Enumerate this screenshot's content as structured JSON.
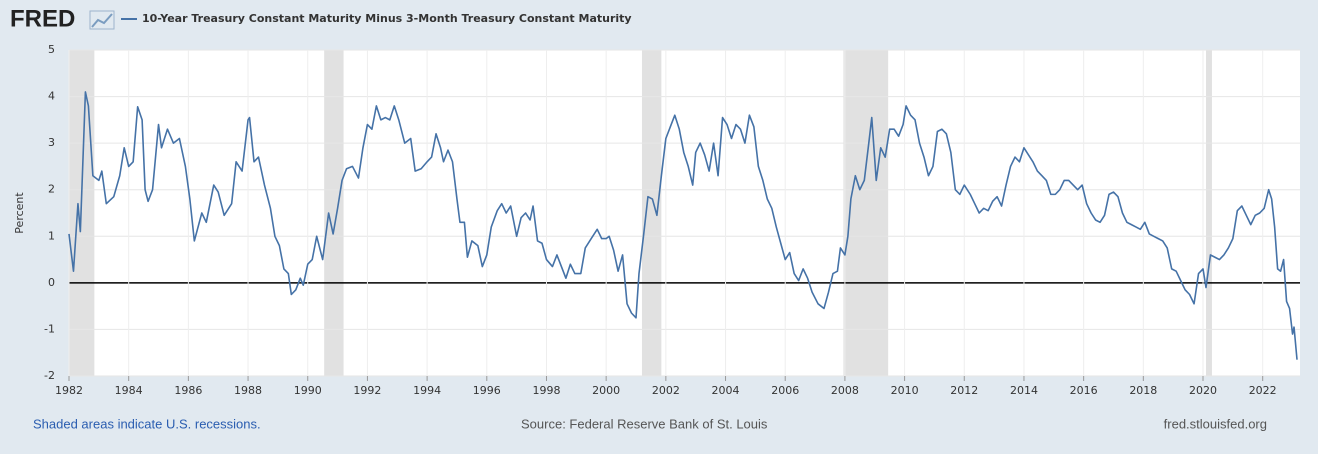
{
  "header": {
    "logo": "FRED"
  },
  "chart_data": {
    "type": "line",
    "y_label": "Percent",
    "x": [
      1982.0,
      1982.15,
      1982.3,
      1982.38,
      1982.55,
      1982.65,
      1982.8,
      1983.0,
      1983.1,
      1983.25,
      1983.5,
      1983.7,
      1983.85,
      1984.0,
      1984.15,
      1984.3,
      1984.45,
      1984.55,
      1984.65,
      1984.8,
      1985.0,
      1985.1,
      1985.3,
      1985.5,
      1985.7,
      1985.9,
      1986.05,
      1986.2,
      1986.45,
      1986.6,
      1986.85,
      1987.0,
      1987.2,
      1987.45,
      1987.6,
      1987.8,
      1988.0,
      1988.05,
      1988.2,
      1988.35,
      1988.55,
      1988.75,
      1988.9,
      1989.05,
      1989.2,
      1989.35,
      1989.45,
      1989.6,
      1989.75,
      1989.85,
      1990.0,
      1990.15,
      1990.3,
      1990.5,
      1990.7,
      1990.85,
      1991.0,
      1991.15,
      1991.3,
      1991.5,
      1991.7,
      1991.85,
      1992.0,
      1992.15,
      1992.3,
      1992.45,
      1992.6,
      1992.75,
      1992.9,
      1993.05,
      1993.25,
      1993.45,
      1993.6,
      1993.8,
      1994.0,
      1994.15,
      1994.3,
      1994.45,
      1994.55,
      1994.7,
      1994.85,
      1995.0,
      1995.1,
      1995.25,
      1995.35,
      1995.5,
      1995.7,
      1995.85,
      1996.0,
      1996.15,
      1996.35,
      1996.5,
      1996.65,
      1996.8,
      1997.0,
      1997.15,
      1997.3,
      1997.45,
      1997.55,
      1997.7,
      1997.85,
      1998.0,
      1998.2,
      1998.35,
      1998.5,
      1998.65,
      1998.8,
      1998.95,
      1999.15,
      1999.3,
      1999.5,
      1999.7,
      1999.85,
      2000.0,
      2000.1,
      2000.25,
      2000.4,
      2000.55,
      2000.7,
      2000.85,
      2001.0,
      2001.1,
      2001.25,
      2001.4,
      2001.55,
      2001.7,
      2001.85,
      2002.0,
      2002.15,
      2002.3,
      2002.45,
      2002.6,
      2002.75,
      2002.9,
      2003.0,
      2003.15,
      2003.3,
      2003.45,
      2003.6,
      2003.75,
      2003.9,
      2004.05,
      2004.2,
      2004.35,
      2004.5,
      2004.65,
      2004.8,
      2004.95,
      2005.1,
      2005.25,
      2005.4,
      2005.55,
      2005.7,
      2005.85,
      2006.0,
      2006.15,
      2006.3,
      2006.45,
      2006.6,
      2006.75,
      2006.9,
      2007.1,
      2007.3,
      2007.45,
      2007.6,
      2007.75,
      2007.85,
      2008.0,
      2008.1,
      2008.2,
      2008.35,
      2008.5,
      2008.65,
      2008.8,
      2008.9,
      2009.05,
      2009.2,
      2009.35,
      2009.5,
      2009.65,
      2009.8,
      2009.95,
      2010.05,
      2010.2,
      2010.35,
      2010.5,
      2010.65,
      2010.8,
      2010.95,
      2011.1,
      2011.25,
      2011.4,
      2011.55,
      2011.7,
      2011.85,
      2012.0,
      2012.2,
      2012.35,
      2012.5,
      2012.65,
      2012.8,
      2012.95,
      2013.1,
      2013.25,
      2013.4,
      2013.55,
      2013.7,
      2013.85,
      2014.0,
      2014.15,
      2014.3,
      2014.45,
      2014.6,
      2014.75,
      2014.9,
      2015.05,
      2015.2,
      2015.35,
      2015.5,
      2015.65,
      2015.8,
      2015.95,
      2016.1,
      2016.25,
      2016.4,
      2016.55,
      2016.7,
      2016.85,
      2017.0,
      2017.15,
      2017.3,
      2017.45,
      2017.6,
      2017.75,
      2017.9,
      2018.05,
      2018.2,
      2018.35,
      2018.5,
      2018.65,
      2018.8,
      2018.95,
      2019.1,
      2019.25,
      2019.4,
      2019.55,
      2019.7,
      2019.85,
      2020.0,
      2020.1,
      2020.25,
      2020.4,
      2020.55,
      2020.7,
      2020.85,
      2021.0,
      2021.15,
      2021.3,
      2021.45,
      2021.6,
      2021.75,
      2021.9,
      2022.05,
      2022.2,
      2022.3,
      2022.4,
      2022.5,
      2022.6,
      2022.7,
      2022.8,
      2022.9,
      2023.0,
      2023.05,
      2023.15
    ],
    "series": [
      {
        "name": "10-Year Treasury Constant Maturity Minus 3-Month Treasury Constant Maturity",
        "color": "#4572a7",
        "values": [
          1.05,
          0.25,
          1.7,
          1.1,
          4.1,
          3.8,
          2.3,
          2.2,
          2.4,
          1.7,
          1.85,
          2.3,
          2.9,
          2.5,
          2.6,
          3.78,
          3.5,
          2.0,
          1.75,
          2.0,
          3.4,
          2.9,
          3.3,
          3.0,
          3.1,
          2.5,
          1.8,
          0.9,
          1.5,
          1.3,
          2.1,
          1.95,
          1.45,
          1.7,
          2.6,
          2.4,
          3.5,
          3.55,
          2.6,
          2.7,
          2.1,
          1.6,
          1.0,
          0.8,
          0.3,
          0.2,
          -0.25,
          -0.15,
          0.1,
          -0.05,
          0.4,
          0.5,
          1.0,
          0.5,
          1.5,
          1.05,
          1.6,
          2.2,
          2.45,
          2.5,
          2.25,
          2.9,
          3.4,
          3.3,
          3.8,
          3.5,
          3.55,
          3.5,
          3.8,
          3.5,
          3.0,
          3.1,
          2.4,
          2.45,
          2.6,
          2.7,
          3.2,
          2.9,
          2.6,
          2.85,
          2.6,
          1.8,
          1.3,
          1.3,
          0.55,
          0.9,
          0.8,
          0.35,
          0.6,
          1.2,
          1.55,
          1.7,
          1.5,
          1.65,
          1.0,
          1.4,
          1.5,
          1.35,
          1.65,
          0.9,
          0.85,
          0.5,
          0.35,
          0.6,
          0.35,
          0.1,
          0.4,
          0.2,
          0.2,
          0.75,
          0.95,
          1.15,
          0.95,
          0.95,
          1.0,
          0.7,
          0.25,
          0.6,
          -0.45,
          -0.65,
          -0.75,
          0.2,
          1.0,
          1.85,
          1.8,
          1.45,
          2.3,
          3.1,
          3.35,
          3.6,
          3.3,
          2.8,
          2.5,
          2.1,
          2.8,
          3.0,
          2.75,
          2.4,
          3.0,
          2.3,
          3.55,
          3.4,
          3.1,
          3.4,
          3.3,
          3.0,
          3.6,
          3.35,
          2.5,
          2.2,
          1.8,
          1.6,
          1.2,
          0.85,
          0.5,
          0.65,
          0.2,
          0.05,
          0.3,
          0.1,
          -0.2,
          -0.45,
          -0.55,
          -0.2,
          0.2,
          0.25,
          0.75,
          0.6,
          1.0,
          1.8,
          2.3,
          2.0,
          2.2,
          3.0,
          3.55,
          2.2,
          2.9,
          2.7,
          3.3,
          3.3,
          3.15,
          3.4,
          3.8,
          3.6,
          3.5,
          3.0,
          2.7,
          2.3,
          2.5,
          3.25,
          3.3,
          3.2,
          2.8,
          2.0,
          1.9,
          2.1,
          1.9,
          1.7,
          1.5,
          1.6,
          1.55,
          1.75,
          1.85,
          1.65,
          2.1,
          2.5,
          2.7,
          2.6,
          2.9,
          2.75,
          2.6,
          2.4,
          2.3,
          2.2,
          1.9,
          1.9,
          2.0,
          2.2,
          2.2,
          2.1,
          2.0,
          2.1,
          1.7,
          1.5,
          1.35,
          1.3,
          1.45,
          1.9,
          1.95,
          1.85,
          1.5,
          1.3,
          1.25,
          1.2,
          1.15,
          1.3,
          1.05,
          1.0,
          0.95,
          0.9,
          0.75,
          0.3,
          0.25,
          0.05,
          -0.15,
          -0.25,
          -0.45,
          0.2,
          0.3,
          -0.1,
          0.6,
          0.55,
          0.5,
          0.6,
          0.75,
          0.95,
          1.55,
          1.65,
          1.45,
          1.25,
          1.45,
          1.5,
          1.6,
          2.0,
          1.8,
          1.2,
          0.3,
          0.25,
          0.5,
          -0.4,
          -0.55,
          -1.1,
          -0.95,
          -1.65
        ]
      }
    ],
    "recessions": [
      {
        "start": 1982.0,
        "end": 1982.85
      },
      {
        "start": 1990.55,
        "end": 1991.2
      },
      {
        "start": 1991.2,
        "end": 1991.2
      },
      {
        "start": 2001.2,
        "end": 2001.85
      },
      {
        "start": 2007.95,
        "end": 2009.45
      },
      {
        "start": 2020.1,
        "end": 2020.3
      }
    ],
    "xlim": [
      1982,
      2023.25
    ],
    "xticks": [
      1982,
      1984,
      1986,
      1988,
      1990,
      1992,
      1994,
      1996,
      1998,
      2000,
      2002,
      2004,
      2006,
      2008,
      2010,
      2012,
      2014,
      2016,
      2018,
      2020,
      2022
    ],
    "ylim": [
      -2,
      5
    ],
    "yticks": [
      -2,
      -1,
      0,
      1,
      2,
      3,
      4,
      5
    ],
    "grid": true
  },
  "footer": {
    "note": "Shaded areas indicate U.S. recessions.",
    "source": "Source: Federal Reserve Bank of St. Louis",
    "site": "fred.stlouisfed.org"
  }
}
